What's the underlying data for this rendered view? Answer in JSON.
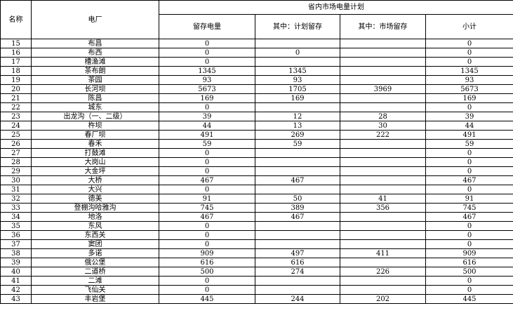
{
  "header": {
    "name_col": "名称",
    "plant_col": "电厂",
    "group_title": "省内市场电量计划",
    "sub_cols": [
      "留存电量",
      "其中：计划留存",
      "其中：市场留存",
      "小计"
    ]
  },
  "rows": [
    [
      "15",
      "布昌",
      "0",
      "",
      "",
      "0"
    ],
    [
      "16",
      "布西",
      "0",
      "0",
      "",
      "0"
    ],
    [
      "17",
      "槽渔滩",
      "0",
      "",
      "",
      "0"
    ],
    [
      "18",
      "茶布朗",
      "1345",
      "1345",
      "",
      "1345"
    ],
    [
      "19",
      "茶园",
      "93",
      "93",
      "",
      "93"
    ],
    [
      "20",
      "长河坝",
      "5673",
      "1705",
      "3969",
      "5673"
    ],
    [
      "21",
      "陈昌",
      "169",
      "169",
      "",
      "169"
    ],
    [
      "22",
      "城东",
      "0",
      "",
      "",
      "0"
    ],
    [
      "23",
      "出龙沟（一、二级）",
      "39",
      "12",
      "28",
      "39"
    ],
    [
      "24",
      "杵坝",
      "44",
      "13",
      "30",
      "44"
    ],
    [
      "25",
      "春厂坝",
      "491",
      "269",
      "222",
      "491"
    ],
    [
      "26",
      "春禾",
      "59",
      "59",
      "",
      "59"
    ],
    [
      "27",
      "打鼓滩",
      "0",
      "",
      "",
      "0"
    ],
    [
      "28",
      "大岗山",
      "0",
      "",
      "",
      "0"
    ],
    [
      "29",
      "大金坪",
      "0",
      "",
      "",
      "0"
    ],
    [
      "30",
      "大桥",
      "467",
      "467",
      "",
      "467"
    ],
    [
      "31",
      "大兴",
      "0",
      "",
      "",
      "0"
    ],
    [
      "32",
      "德美",
      "91",
      "50",
      "41",
      "91"
    ],
    [
      "33",
      "登棚沟哈雅沟",
      "745",
      "389",
      "356",
      "745"
    ],
    [
      "34",
      "地洛",
      "467",
      "467",
      "",
      "467"
    ],
    [
      "35",
      "东风",
      "0",
      "",
      "",
      "0"
    ],
    [
      "36",
      "东西关",
      "0",
      "",
      "",
      "0"
    ],
    [
      "37",
      "窦团",
      "0",
      "",
      "",
      "0"
    ],
    [
      "38",
      "多诺",
      "909",
      "497",
      "411",
      "909"
    ],
    [
      "39",
      "俄公堡",
      "616",
      "616",
      "",
      "616"
    ],
    [
      "40",
      "二道桥",
      "500",
      "274",
      "226",
      "500"
    ],
    [
      "41",
      "二滩",
      "0",
      "",
      "",
      "0"
    ],
    [
      "42",
      "飞仙关",
      "0",
      "",
      "",
      "0"
    ],
    [
      "43",
      "丰岩堡",
      "445",
      "244",
      "202",
      "445"
    ]
  ]
}
